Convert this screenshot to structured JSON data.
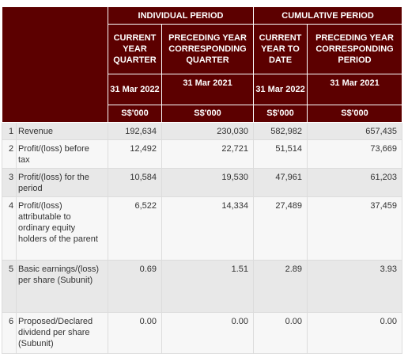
{
  "header": {
    "individual_period": "INDIVIDUAL PERIOD",
    "cumulative_period": "CUMULATIVE PERIOD",
    "col1_title": "CURRENT YEAR QUARTER",
    "col2_title": "PRECEDING YEAR CORRESPONDING QUARTER",
    "col3_title": "CURRENT YEAR TO DATE",
    "col4_title": "PRECEDING YEAR CORRESPONDING PERIOD",
    "col1_date": "31 Mar 2022",
    "col2_date": "31 Mar 2021",
    "col3_date": "31 Mar 2022",
    "col4_date": "31 Mar 2021",
    "unit": "S$'000"
  },
  "rows": [
    {
      "idx": "1",
      "label": "Revenue",
      "v1": "192,634",
      "v2": "230,030",
      "v3": "582,982",
      "v4": "657,435"
    },
    {
      "idx": "2",
      "label": "Profit/(loss) before tax",
      "v1": "12,492",
      "v2": "22,721",
      "v3": "51,514",
      "v4": "73,669"
    },
    {
      "idx": "3",
      "label": "Profit/(loss) for the period",
      "v1": "10,584",
      "v2": "19,530",
      "v3": "47,961",
      "v4": "61,203"
    },
    {
      "idx": "4",
      "label": "Profit/(loss) attributable to ordinary equity holders of the parent",
      "v1": "6,522",
      "v2": "14,334",
      "v3": "27,489",
      "v4": "37,459"
    },
    {
      "idx": "5",
      "label": "Basic earnings/(loss) per share (Subunit)",
      "v1": "0.69",
      "v2": "1.51",
      "v3": "2.89",
      "v4": "3.93"
    },
    {
      "idx": "6",
      "label": "Proposed/Declared dividend per share (Subunit)",
      "v1": "0.00",
      "v2": "0.00",
      "v3": "0.00",
      "v4": "0.00"
    }
  ]
}
